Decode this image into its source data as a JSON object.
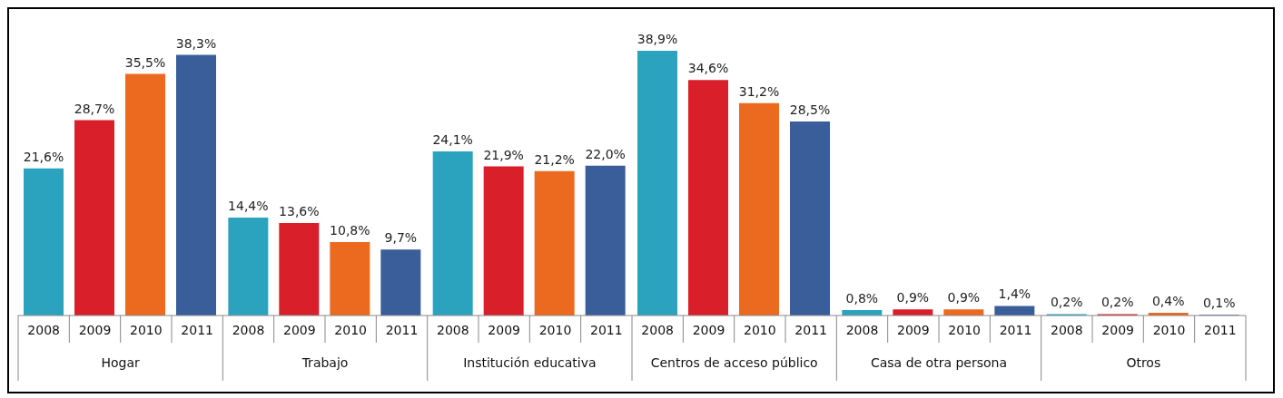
{
  "chart_data": {
    "type": "bar",
    "categories": [
      "Hogar",
      "Trabajo",
      "Institución educativa",
      "Centros de acceso público",
      "Casa de otra persona",
      "Otros"
    ],
    "series": [
      {
        "name": "2008",
        "color": "#2ba3bf",
        "values": [
          21.6,
          14.4,
          24.1,
          38.9,
          0.8,
          0.2
        ],
        "value_labels": [
          "21,6%",
          "14,4%",
          "24,1%",
          "38,9%",
          "0,8%",
          "0,2%"
        ]
      },
      {
        "name": "2009",
        "color": "#d9202a",
        "values": [
          28.7,
          13.6,
          21.9,
          34.6,
          0.9,
          0.2
        ],
        "value_labels": [
          "28,7%",
          "13,6%",
          "21,9%",
          "34,6%",
          "0,9%",
          "0,2%"
        ]
      },
      {
        "name": "2010",
        "color": "#eb6a1f",
        "values": [
          35.5,
          10.8,
          21.2,
          31.2,
          0.9,
          0.4
        ],
        "value_labels": [
          "35,5%",
          "10,8%",
          "21,2%",
          "31,2%",
          "0,9%",
          "0,4%"
        ]
      },
      {
        "name": "2011",
        "color": "#3a5e9a",
        "values": [
          38.3,
          9.7,
          22.0,
          28.5,
          1.4,
          0.1
        ],
        "value_labels": [
          "38,3%",
          "9,7%",
          "22,0%",
          "28,5%",
          "1,4%",
          "0,1%"
        ]
      }
    ],
    "grid": false,
    "legend": false
  }
}
